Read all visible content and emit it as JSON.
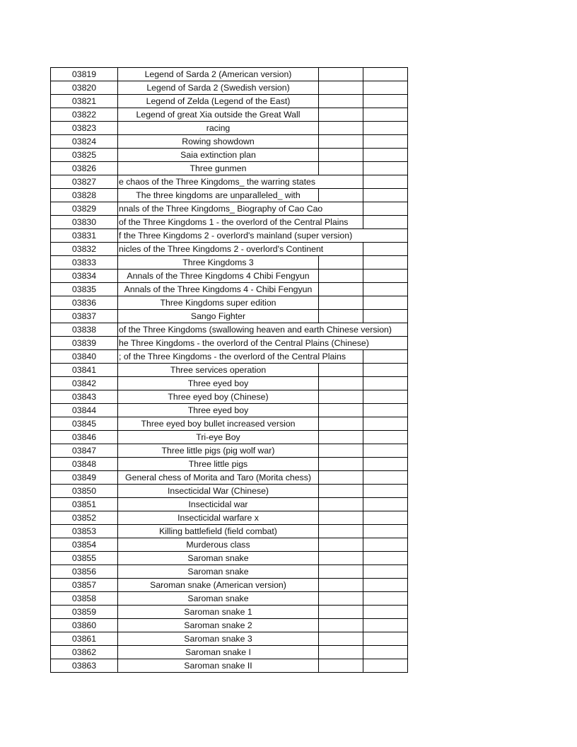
{
  "rows": [
    {
      "id": "03819",
      "name": "Legend of Sarda 2 (American version)"
    },
    {
      "id": "03820",
      "name": "Legend of Sarda 2 (Swedish version)"
    },
    {
      "id": "03821",
      "name": "Legend of Zelda (Legend of the East)"
    },
    {
      "id": "03822",
      "name": "Legend of great Xia outside the Great Wall"
    },
    {
      "id": "03823",
      "name": "racing"
    },
    {
      "id": "03824",
      "name": "Rowing showdown"
    },
    {
      "id": "03825",
      "name": "Saia extinction plan"
    },
    {
      "id": "03826",
      "name": "Three gunmen"
    },
    {
      "id": "03827",
      "name": "e chaos of the Three Kingdoms_ the warring states",
      "span": 2
    },
    {
      "id": "03828",
      "name": "The three kingdoms are unparalleled_ with"
    },
    {
      "id": "03829",
      "name": "nnals of the Three Kingdoms_ Biography of Cao Cao",
      "span": 2
    },
    {
      "id": "03830",
      "name": "of the Three Kingdoms 1 - the overlord of the Central Plains",
      "span": 2
    },
    {
      "id": "03831",
      "name": "f the Three Kingdoms 2 - overlord's mainland (super version)",
      "span": 3
    },
    {
      "id": "03832",
      "name": "nicles of the Three Kingdoms 2 - overlord's Continent",
      "span": 2
    },
    {
      "id": "03833",
      "name": "Three Kingdoms 3"
    },
    {
      "id": "03834",
      "name": "Annals of the Three Kingdoms 4 Chibi Fengyun"
    },
    {
      "id": "03835",
      "name": "Annals of the Three Kingdoms 4 - Chibi Fengyun"
    },
    {
      "id": "03836",
      "name": "Three Kingdoms super edition"
    },
    {
      "id": "03837",
      "name": "Sango Fighter"
    },
    {
      "id": "03838",
      "name": "of the Three Kingdoms (swallowing heaven and earth Chinese version)",
      "span": 3
    },
    {
      "id": "03839",
      "name": "he Three Kingdoms - the overlord of the Central Plains (Chinese)",
      "span": 3
    },
    {
      "id": "03840",
      "name": "; of the Three Kingdoms - the overlord of the Central Plains",
      "span": 2
    },
    {
      "id": "03841",
      "name": "Three services operation"
    },
    {
      "id": "03842",
      "name": "Three eyed boy"
    },
    {
      "id": "03843",
      "name": "Three eyed boy (Chinese)"
    },
    {
      "id": "03844",
      "name": "Three eyed boy"
    },
    {
      "id": "03845",
      "name": "Three eyed boy bullet increased version"
    },
    {
      "id": "03846",
      "name": "Tri-eye Boy"
    },
    {
      "id": "03847",
      "name": "Three little pigs (pig wolf war)"
    },
    {
      "id": "03848",
      "name": "Three little pigs"
    },
    {
      "id": "03849",
      "name": "General chess of Morita and Taro (Morita chess)"
    },
    {
      "id": "03850",
      "name": "Insecticidal War (Chinese)"
    },
    {
      "id": "03851",
      "name": "Insecticidal war"
    },
    {
      "id": "03852",
      "name": "Insecticidal warfare x"
    },
    {
      "id": "03853",
      "name": "Killing battlefield (field combat)"
    },
    {
      "id": "03854",
      "name": "Murderous class"
    },
    {
      "id": "03855",
      "name": "Saroman snake"
    },
    {
      "id": "03856",
      "name": "Saroman snake"
    },
    {
      "id": "03857",
      "name": "Saroman snake (American version)"
    },
    {
      "id": "03858",
      "name": "Saroman snake"
    },
    {
      "id": "03859",
      "name": "Saroman snake 1"
    },
    {
      "id": "03860",
      "name": "Saroman snake 2"
    },
    {
      "id": "03861",
      "name": "Saroman snake 3"
    },
    {
      "id": "03862",
      "name": "Saroman snake I"
    },
    {
      "id": "03863",
      "name": "Saroman snake II"
    }
  ]
}
